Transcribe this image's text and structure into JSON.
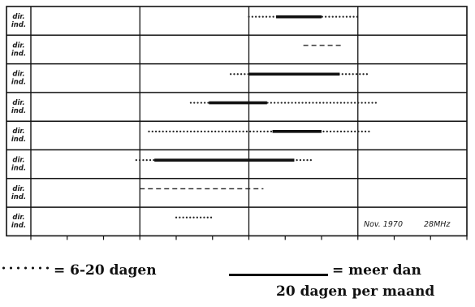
{
  "chart_data": {
    "type": "timeline",
    "xlim": [
      0,
      24
    ],
    "xticks": [
      "00",
      "02",
      "04",
      "06",
      "08",
      "10",
      "12",
      "14",
      "16",
      "18",
      "20",
      "22",
      "24"
    ],
    "row_label": [
      "dir.",
      "ind."
    ],
    "rows": [
      {
        "dotted": [
          [
            12.0,
            18.0
          ]
        ],
        "solid": [
          [
            13.5,
            16.0
          ]
        ],
        "dashed": []
      },
      {
        "dotted": [],
        "solid": [],
        "dashed": [
          [
            15.0,
            17.2
          ]
        ]
      },
      {
        "dotted": [
          [
            11.0,
            18.5
          ]
        ],
        "solid": [
          [
            12.0,
            17.0
          ]
        ],
        "dashed": []
      },
      {
        "dotted": [
          [
            8.8,
            19.0
          ]
        ],
        "solid": [
          [
            9.8,
            13.0
          ]
        ],
        "dashed": []
      },
      {
        "dotted": [
          [
            6.5,
            18.7
          ]
        ],
        "solid": [
          [
            13.3,
            16.0
          ]
        ],
        "dashed": []
      },
      {
        "dotted": [
          [
            5.8,
            15.6
          ]
        ],
        "solid": [
          [
            6.8,
            14.5
          ]
        ],
        "dashed": []
      },
      {
        "dotted": [],
        "solid": [],
        "dashed": [
          [
            6.0,
            12.8
          ]
        ]
      },
      {
        "dotted": [
          [
            8.0,
            10.0
          ]
        ],
        "solid": [],
        "dashed": []
      }
    ],
    "annotation_left": "Nov. 1970",
    "annotation_right": "28MHz",
    "grid": true
  },
  "legend": {
    "dotted_label": "= 6-20 dagen",
    "solid_label_line1": "= meer dan",
    "solid_label_line2": "20 dagen per maand"
  }
}
